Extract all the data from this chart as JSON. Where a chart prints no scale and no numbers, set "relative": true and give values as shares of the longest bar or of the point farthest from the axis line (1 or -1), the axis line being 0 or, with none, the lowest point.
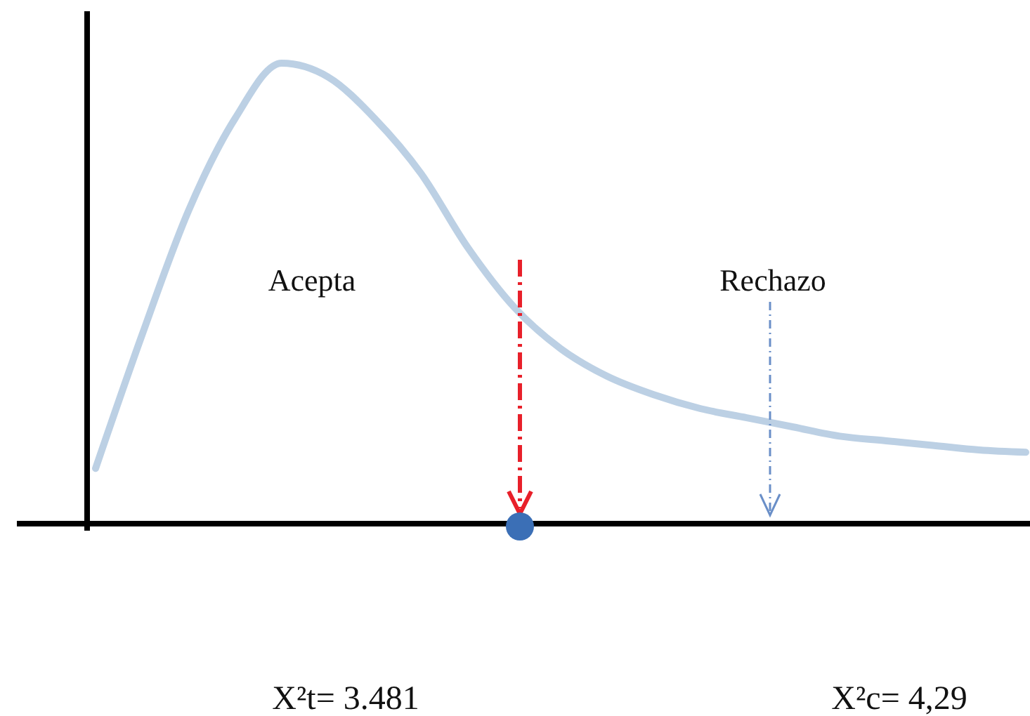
{
  "chart_data": {
    "type": "line",
    "relative": true,
    "categories": [
      null,
      null,
      null,
      null,
      null,
      null,
      null,
      null,
      null,
      null,
      null,
      null,
      null,
      null,
      null,
      null,
      null,
      null,
      null,
      null,
      null
    ],
    "series": [
      {
        "color": "#bcd0e4",
        "values": [
          0.12,
          0.41,
          0.68,
          0.88,
          1,
          0.97,
          0.88,
          0.76,
          0.6,
          0.47,
          0.38,
          0.32,
          0.28,
          0.25,
          0.23,
          0.21,
          0.19,
          0.18,
          0.17,
          0.16,
          0.155
        ]
      }
    ],
    "marker": "none",
    "line_style": "solid",
    "grid": false,
    "annotations": [
      "Acepta",
      "Rechazo",
      "X²t= 3.481",
      "X²c= 4,29"
    ]
  }
}
